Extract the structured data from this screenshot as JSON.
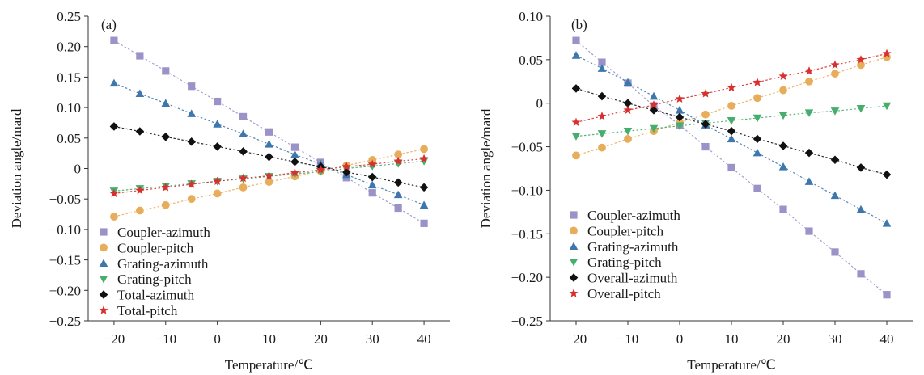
{
  "chart_data": [
    {
      "type": "line",
      "panel_label": "(a)",
      "xlabel": "Temperature/℃",
      "ylabel": "Deviation angle/mard",
      "xlim": [
        -25,
        45
      ],
      "ylim": [
        -0.25,
        0.25
      ],
      "xticks": [
        -20,
        -10,
        0,
        10,
        20,
        30,
        40
      ],
      "xtick_labels": [
        "−20",
        "−10",
        "0",
        "10",
        "20",
        "30",
        "40"
      ],
      "yticks": [
        0.25,
        0.2,
        0.15,
        0.1,
        0.05,
        0,
        -0.05,
        -0.1,
        -0.15,
        -0.2,
        -0.25
      ],
      "ytick_labels": [
        "0.25",
        "0.20",
        "0.15",
        "0.10",
        "0.05",
        "0",
        "−0.05",
        "−0.10",
        "−0.15",
        "−0.20",
        "−0.25"
      ],
      "grid": false,
      "legend_position": "bottom-left",
      "x": [
        -20,
        -15,
        -10,
        -5,
        0,
        5,
        10,
        15,
        20,
        25,
        30,
        35,
        40
      ],
      "series": [
        {
          "name": "Coupler-azimuth",
          "marker": "square",
          "color": "#9b92c8",
          "values": [
            0.21,
            0.185,
            0.16,
            0.135,
            0.11,
            0.085,
            0.06,
            0.035,
            0.01,
            -0.015,
            -0.04,
            -0.065,
            -0.09
          ]
        },
        {
          "name": "Coupler-pitch",
          "marker": "circle",
          "color": "#e8ad5a",
          "values": [
            -0.079,
            -0.069,
            -0.06,
            -0.05,
            -0.041,
            -0.031,
            -0.022,
            -0.013,
            -0.004,
            0.005,
            0.014,
            0.023,
            0.032
          ]
        },
        {
          "name": "Grating-azimuth",
          "marker": "triangle-up",
          "color": "#3e77ad",
          "values": [
            0.14,
            0.123,
            0.107,
            0.09,
            0.073,
            0.057,
            0.04,
            0.023,
            0.007,
            -0.01,
            -0.027,
            -0.043,
            -0.06
          ]
        },
        {
          "name": "Grating-pitch",
          "marker": "triangle-down",
          "color": "#46ad6c",
          "values": [
            -0.037,
            -0.033,
            -0.029,
            -0.025,
            -0.021,
            -0.017,
            -0.013,
            -0.009,
            -0.005,
            0.0,
            0.004,
            0.008,
            0.012
          ]
        },
        {
          "name": "Total-azimuth",
          "marker": "diamond",
          "color": "#111111",
          "values": [
            0.069,
            0.061,
            0.052,
            0.044,
            0.036,
            0.028,
            0.019,
            0.011,
            0.003,
            -0.006,
            -0.014,
            -0.023,
            -0.031
          ]
        },
        {
          "name": "Total-pitch",
          "marker": "star",
          "color": "#d9302f",
          "values": [
            -0.041,
            -0.036,
            -0.031,
            -0.026,
            -0.021,
            -0.016,
            -0.012,
            -0.007,
            -0.002,
            0.003,
            0.007,
            0.012,
            0.016
          ]
        }
      ]
    },
    {
      "type": "line",
      "panel_label": "(b)",
      "xlabel": "Temperature/℃",
      "ylabel": "Deviation angle/mard",
      "xlim": [
        -25,
        45
      ],
      "ylim": [
        -0.25,
        0.1
      ],
      "xticks": [
        -20,
        -10,
        0,
        10,
        20,
        30,
        40
      ],
      "xtick_labels": [
        "−20",
        "−10",
        "0",
        "10",
        "20",
        "30",
        "40"
      ],
      "yticks": [
        0.1,
        0.05,
        0,
        -0.05,
        -0.1,
        -0.15,
        -0.2,
        -0.25
      ],
      "ytick_labels": [
        "0.10",
        "0.05",
        "0",
        "−0.05",
        "−0.10",
        "−0.15",
        "−0.20",
        "−0.25"
      ],
      "grid": false,
      "legend_position": "bottom-left",
      "x": [
        -20,
        -15,
        -10,
        -5,
        0,
        5,
        10,
        15,
        20,
        25,
        30,
        35,
        40
      ],
      "series": [
        {
          "name": "Coupler-azimuth",
          "marker": "square",
          "color": "#9b92c8",
          "values": [
            0.072,
            0.047,
            0.023,
            -0.003,
            -0.025,
            -0.05,
            -0.074,
            -0.098,
            -0.122,
            -0.147,
            -0.171,
            -0.196,
            -0.22
          ]
        },
        {
          "name": "Coupler-pitch",
          "marker": "circle",
          "color": "#e8ad5a",
          "values": [
            -0.06,
            -0.051,
            -0.041,
            -0.032,
            -0.022,
            -0.013,
            -0.003,
            0.006,
            0.015,
            0.025,
            0.034,
            0.044,
            0.053
          ]
        },
        {
          "name": "Grating-azimuth",
          "marker": "triangle-up",
          "color": "#3e77ad",
          "values": [
            0.055,
            0.04,
            0.024,
            0.008,
            -0.008,
            -0.025,
            -0.041,
            -0.057,
            -0.073,
            -0.09,
            -0.106,
            -0.122,
            -0.138
          ]
        },
        {
          "name": "Grating-pitch",
          "marker": "triangle-down",
          "color": "#46ad6c",
          "values": [
            -0.038,
            -0.035,
            -0.032,
            -0.029,
            -0.026,
            -0.023,
            -0.02,
            -0.017,
            -0.014,
            -0.011,
            -0.009,
            -0.006,
            -0.003
          ]
        },
        {
          "name": "Overall-azimuth",
          "marker": "diamond",
          "color": "#111111",
          "values": [
            0.017,
            0.008,
            0.0,
            -0.008,
            -0.016,
            -0.024,
            -0.032,
            -0.041,
            -0.049,
            -0.057,
            -0.065,
            -0.074,
            -0.082
          ]
        },
        {
          "name": "Overall-pitch",
          "marker": "star",
          "color": "#d9302f",
          "values": [
            -0.022,
            -0.015,
            -0.008,
            -0.002,
            0.005,
            0.011,
            0.018,
            0.024,
            0.031,
            0.037,
            0.044,
            0.05,
            0.057
          ]
        }
      ]
    }
  ]
}
